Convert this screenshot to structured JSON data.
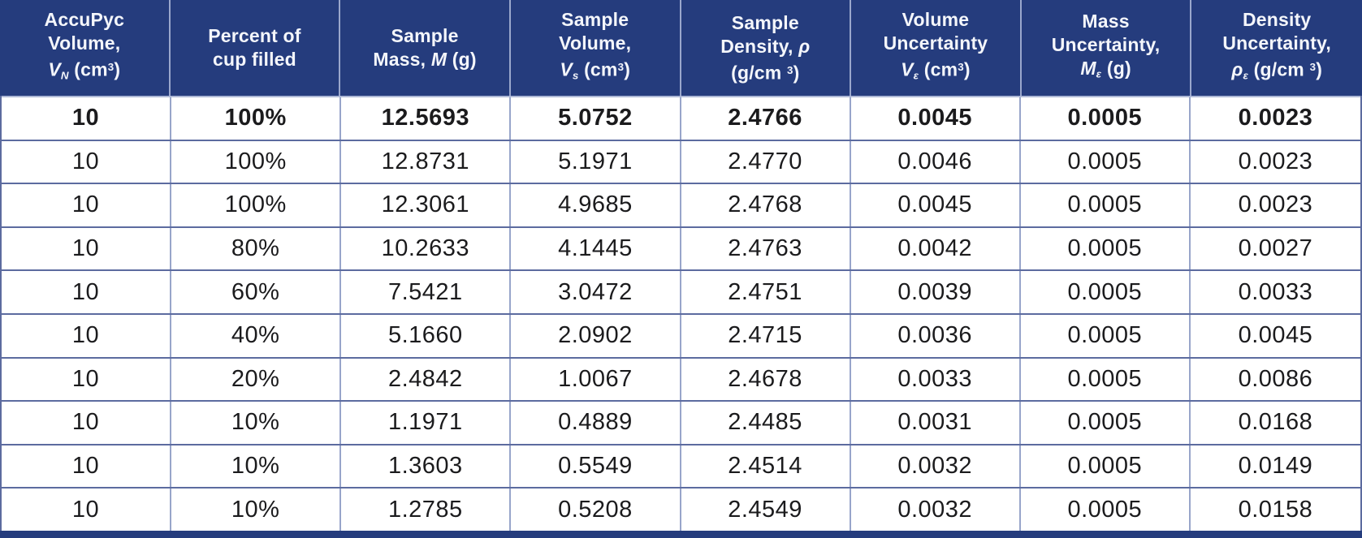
{
  "colors": {
    "header_bg": "#253c7d",
    "header_text": "#f4f6fb",
    "border_dark": "#5c6b9f",
    "border_light": "#98a5ca",
    "header_divider": "#9aa7cc",
    "bottom_bar": "#253c7d",
    "cell_text": "#1b1b1d"
  },
  "table": {
    "columns": [
      {
        "id": "accupyc-volume",
        "plain_label": "AccuPyc Volume, VN (cm3)",
        "lines": [
          [
            {
              "t": "AccuPyc"
            }
          ],
          [
            {
              "t": "Volume,"
            }
          ],
          [
            {
              "t": "V",
              "i": true
            },
            {
              "t": "N",
              "sub": true
            },
            {
              "t": " (cm"
            },
            {
              "t": "3",
              "sup": true
            },
            {
              "t": ")"
            }
          ]
        ]
      },
      {
        "id": "percent-cup-filled",
        "plain_label": "Percent of cup filled",
        "lines": [
          [
            {
              "t": "Percent of"
            }
          ],
          [
            {
              "t": "cup filled"
            }
          ]
        ]
      },
      {
        "id": "sample-mass",
        "plain_label": "Sample Mass, M (g)",
        "lines": [
          [
            {
              "t": "Sample"
            }
          ],
          [
            {
              "t": "Mass, "
            },
            {
              "t": "M",
              "i": true
            },
            {
              "t": " (g)"
            }
          ]
        ]
      },
      {
        "id": "sample-volume",
        "plain_label": "Sample Volume, VS (cm3)",
        "lines": [
          [
            {
              "t": "Sample"
            }
          ],
          [
            {
              "t": "Volume,"
            }
          ],
          [
            {
              "t": "V",
              "i": true
            },
            {
              "t": "s",
              "sub": true
            },
            {
              "t": " (cm"
            },
            {
              "t": "3",
              "sup": true
            },
            {
              "t": ")"
            }
          ]
        ]
      },
      {
        "id": "sample-density",
        "plain_label": "Sample Density, rho (g/cm3)",
        "lines": [
          [
            {
              "t": "Sample"
            }
          ],
          [
            {
              "t": "Density, "
            },
            {
              "t": "ρ",
              "i": true
            }
          ],
          [
            {
              "t": "(g/cm "
            },
            {
              "t": "3",
              "sup": true
            },
            {
              "t": ")"
            }
          ]
        ]
      },
      {
        "id": "volume-uncertainty",
        "plain_label": "Volume Uncertainty Vε (cm3)",
        "lines": [
          [
            {
              "t": "Volume"
            }
          ],
          [
            {
              "t": "Uncertainty"
            }
          ],
          [
            {
              "t": "V",
              "i": true
            },
            {
              "t": "ε",
              "sub": true
            },
            {
              "t": " (cm"
            },
            {
              "t": "3",
              "sup": true
            },
            {
              "t": ")"
            }
          ]
        ]
      },
      {
        "id": "mass-uncertainty",
        "plain_label": "Mass Uncertainty, Mε (g)",
        "lines": [
          [
            {
              "t": "Mass"
            }
          ],
          [
            {
              "t": "Uncertainty,"
            }
          ],
          [
            {
              "t": "M",
              "i": true
            },
            {
              "t": "ε",
              "sub": true
            },
            {
              "t": " (g)"
            }
          ]
        ]
      },
      {
        "id": "density-uncertainty",
        "plain_label": "Density Uncertainty, ρε (g/cm3)",
        "lines": [
          [
            {
              "t": "Density"
            }
          ],
          [
            {
              "t": "Uncertainty,"
            }
          ],
          [
            {
              "t": "ρ",
              "i": true
            },
            {
              "t": "ε",
              "sub": true
            },
            {
              "t": " (g/cm "
            },
            {
              "t": "3",
              "sup": true
            },
            {
              "t": ")"
            }
          ]
        ]
      }
    ],
    "rows": [
      {
        "bold": true,
        "cells": [
          "10",
          "100%",
          "12.5693",
          "5.0752",
          "2.4766",
          "0.0045",
          "0.0005",
          "0.0023"
        ]
      },
      {
        "bold": false,
        "cells": [
          "10",
          "100%",
          "12.8731",
          "5.1971",
          "2.4770",
          "0.0046",
          "0.0005",
          "0.0023"
        ]
      },
      {
        "bold": false,
        "cells": [
          "10",
          "100%",
          "12.3061",
          "4.9685",
          "2.4768",
          "0.0045",
          "0.0005",
          "0.0023"
        ]
      },
      {
        "bold": false,
        "cells": [
          "10",
          "80%",
          "10.2633",
          "4.1445",
          "2.4763",
          "0.0042",
          "0.0005",
          "0.0027"
        ]
      },
      {
        "bold": false,
        "cells": [
          "10",
          "60%",
          "7.5421",
          "3.0472",
          "2.4751",
          "0.0039",
          "0.0005",
          "0.0033"
        ]
      },
      {
        "bold": false,
        "cells": [
          "10",
          "40%",
          "5.1660",
          "2.0902",
          "2.4715",
          "0.0036",
          "0.0005",
          "0.0045"
        ]
      },
      {
        "bold": false,
        "cells": [
          "10",
          "20%",
          "2.4842",
          "1.0067",
          "2.4678",
          "0.0033",
          "0.0005",
          "0.0086"
        ]
      },
      {
        "bold": false,
        "cells": [
          "10",
          "10%",
          "1.1971",
          "0.4889",
          "2.4485",
          "0.0031",
          "0.0005",
          "0.0168"
        ]
      },
      {
        "bold": false,
        "cells": [
          "10",
          "10%",
          "1.3603",
          "0.5549",
          "2.4514",
          "0.0032",
          "0.0005",
          "0.0149"
        ]
      },
      {
        "bold": false,
        "cells": [
          "10",
          "10%",
          "1.2785",
          "0.5208",
          "2.4549",
          "0.0032",
          "0.0005",
          "0.0158"
        ]
      }
    ]
  }
}
